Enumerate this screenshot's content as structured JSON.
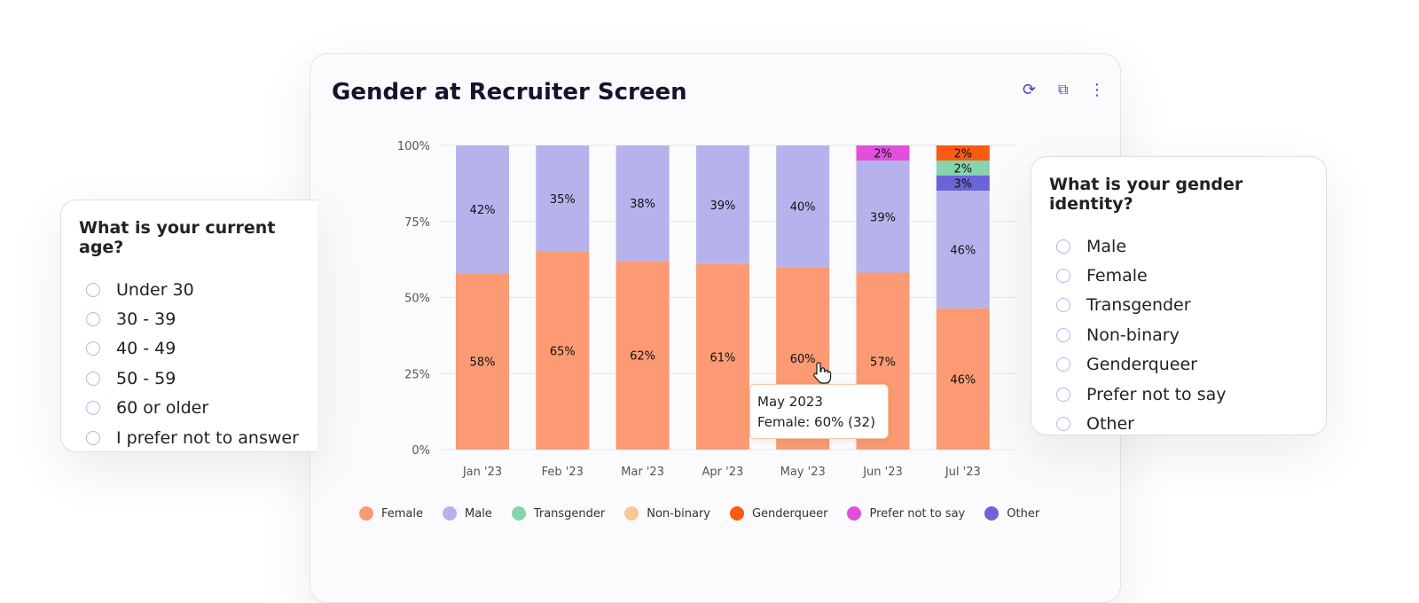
{
  "card": {
    "title": "Gender at Recruiter Screen",
    "icons": [
      "refresh-icon",
      "external-link-icon",
      "more-vertical-icon"
    ]
  },
  "chart_data": {
    "type": "bar",
    "stacked": true,
    "title": "Gender at Recruiter Screen",
    "categories": [
      "Jan '23",
      "Feb '23",
      "Mar '23",
      "Apr '23",
      "May '23",
      "Jun '23",
      "Jul '23"
    ],
    "yticks": [
      "0%",
      "25%",
      "50%",
      "75%",
      "100%"
    ],
    "ylim": [
      0,
      100
    ],
    "grid": true,
    "legend_position": "bottom",
    "series": [
      {
        "name": "Female",
        "color": "#fb9a73",
        "values": [
          58,
          65,
          62,
          61,
          60,
          57,
          46
        ]
      },
      {
        "name": "Male",
        "color": "#b6b3ec",
        "values": [
          42,
          35,
          38,
          39,
          40,
          39,
          46
        ]
      },
      {
        "name": "Other",
        "color": "#6b64d8",
        "values": [
          0,
          0,
          0,
          0,
          0,
          0,
          3
        ]
      },
      {
        "name": "Transgender",
        "color": "#86d3ad",
        "values": [
          0,
          0,
          0,
          0,
          0,
          0,
          2
        ]
      },
      {
        "name": "Non-binary",
        "color": "#f7c796",
        "values": [
          0,
          0,
          0,
          0,
          0,
          0,
          0
        ]
      },
      {
        "name": "Prefer not to say",
        "color": "#e14fdc",
        "values": [
          0,
          0,
          0,
          0,
          0,
          2,
          0
        ]
      },
      {
        "name": "Genderqueer",
        "color": "#fb5a12",
        "values": [
          0,
          0,
          0,
          0,
          0,
          0,
          2
        ]
      }
    ],
    "legend_order": [
      "Female",
      "Male",
      "Transgender",
      "Non-binary",
      "Genderqueer",
      "Prefer not to say",
      "Other"
    ],
    "tooltip": {
      "line1": "May 2023",
      "line2": "Female: 60% (32)"
    }
  },
  "age_question": {
    "title": "What is your current age?",
    "options": [
      "Under 30",
      "30 - 39",
      "40 - 49",
      "50 - 59",
      "60 or older",
      "I prefer not to answer"
    ]
  },
  "gender_question": {
    "title": "What is your gender identity?",
    "options": [
      "Male",
      "Female",
      "Transgender",
      "Non-binary",
      "Genderqueer",
      "Prefer not to say",
      "Other"
    ]
  }
}
